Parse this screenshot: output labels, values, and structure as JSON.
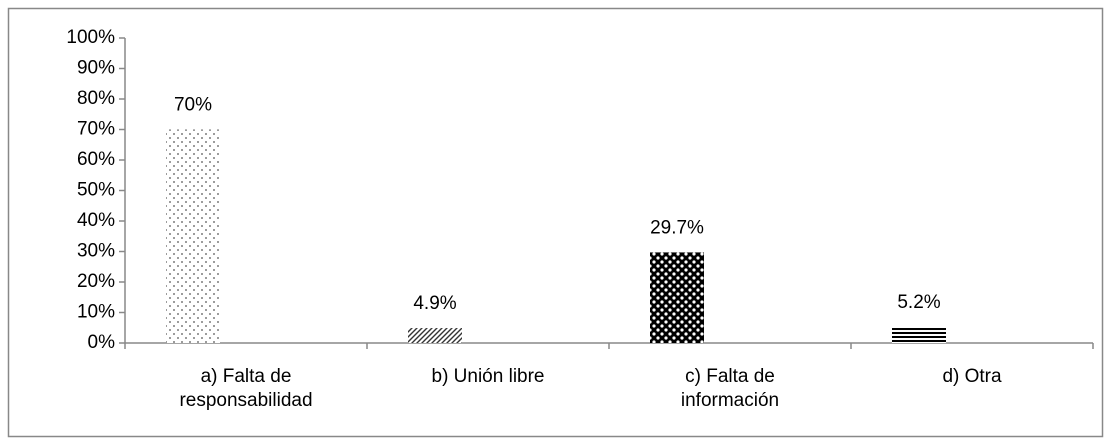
{
  "chart_data": {
    "type": "bar",
    "categories": [
      "a) Falta de\nresponsabilidad",
      "b) Unión libre",
      "c) Falta de\ninformación",
      "d) Otra"
    ],
    "values": [
      70,
      4.9,
      29.7,
      5.2
    ],
    "value_labels": [
      "70%",
      "4.9%",
      "29.7%",
      "5.2%"
    ],
    "ylim": [
      0,
      100
    ],
    "yticks": [
      {
        "value": 0,
        "label": "0%"
      },
      {
        "value": 10,
        "label": "10%"
      },
      {
        "value": 20,
        "label": "20%"
      },
      {
        "value": 30,
        "label": "30%"
      },
      {
        "value": 40,
        "label": "40%"
      },
      {
        "value": 50,
        "label": "50%"
      },
      {
        "value": 60,
        "label": "60%"
      },
      {
        "value": 70,
        "label": "70%"
      },
      {
        "value": 80,
        "label": "80%"
      },
      {
        "value": 90,
        "label": "90%"
      },
      {
        "value": 100,
        "label": "100%"
      }
    ],
    "grid": false
  }
}
